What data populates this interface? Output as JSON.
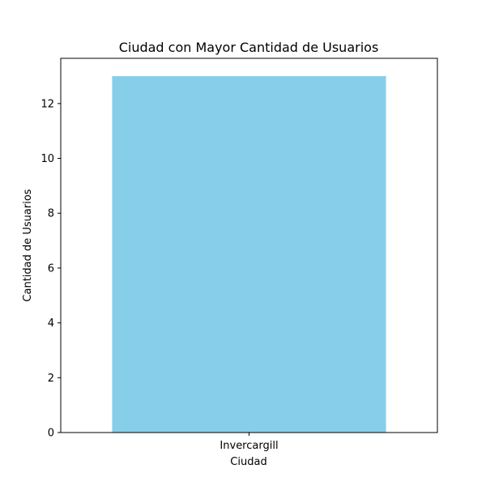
{
  "chart_data": {
    "type": "bar",
    "title": "Ciudad con Mayor Cantidad de Usuarios",
    "xlabel": "Ciudad",
    "ylabel": "Cantidad de Usuarios",
    "categories": [
      "Invercargill"
    ],
    "values": [
      13
    ],
    "ylim": [
      0,
      13.65
    ],
    "yticks": [
      0,
      2,
      4,
      6,
      8,
      10,
      12
    ],
    "bar_color": "#87CEEB",
    "grid": false,
    "legend": "none"
  }
}
